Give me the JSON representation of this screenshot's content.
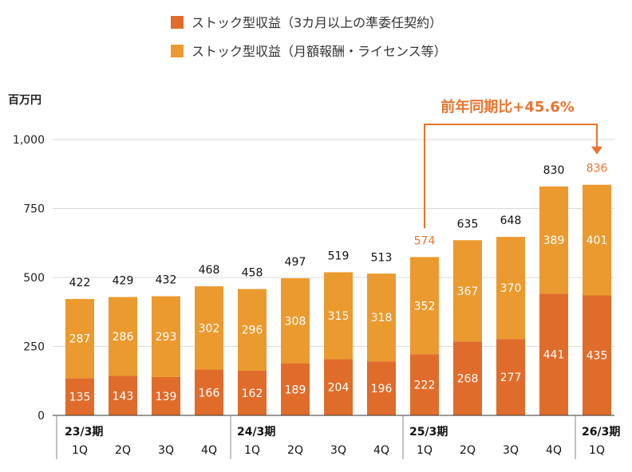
{
  "colors": {
    "recurring_delegation": "#E06C2B",
    "recurring_fees": "#EB9A2F",
    "highlight": "#E8742F",
    "grid": "#D9D9D9",
    "axis": "#333333"
  },
  "legend": [
    {
      "label": "ストック型収益（3カ月以上の準委任契約）",
      "color": "#E06C2B"
    },
    {
      "label": "ストック型収益（月額報酬・ライセンス等）",
      "color": "#EB9A2F"
    }
  ],
  "chart_data": {
    "type": "bar",
    "stacked": true,
    "ylabel": "百万円",
    "ylim": [
      0,
      1000
    ],
    "yticks": [
      "0",
      "250",
      "500",
      "750",
      "1,000"
    ],
    "ytick_values": [
      0,
      250,
      500,
      750,
      1000
    ],
    "grid": true,
    "legend_position": "top-center",
    "categories": [
      "1Q",
      "2Q",
      "3Q",
      "4Q",
      "1Q",
      "2Q",
      "3Q",
      "4Q",
      "1Q",
      "2Q",
      "3Q",
      "4Q",
      "1Q"
    ],
    "period_groups": [
      {
        "label": "23/3期",
        "start": 0,
        "end": 3
      },
      {
        "label": "24/3期",
        "start": 4,
        "end": 7
      },
      {
        "label": "25/3期",
        "start": 8,
        "end": 11
      },
      {
        "label": "26/3期",
        "start": 12,
        "end": 12
      }
    ],
    "series": [
      {
        "name": "ストック型収益（3カ月以上の準委任契約）",
        "values": [
          135,
          143,
          139,
          166,
          162,
          189,
          204,
          196,
          222,
          268,
          277,
          441,
          435
        ]
      },
      {
        "name": "ストック型収益（月額報酬・ライセンス等）",
        "values": [
          287,
          286,
          293,
          302,
          296,
          308,
          315,
          318,
          352,
          367,
          370,
          389,
          401
        ]
      }
    ],
    "totals": [
      "422",
      "429",
      "432",
      "468",
      "458",
      "497",
      "519",
      "513",
      "574",
      "635",
      "648",
      "830",
      "836"
    ],
    "total_values": [
      422,
      429,
      432,
      468,
      458,
      497,
      519,
      513,
      574,
      635,
      648,
      830,
      836
    ],
    "highlighted_totals": [
      8,
      12
    ],
    "annotation": {
      "text": "前年同期比+45.6%",
      "from_index": 8,
      "to_index": 12
    }
  }
}
